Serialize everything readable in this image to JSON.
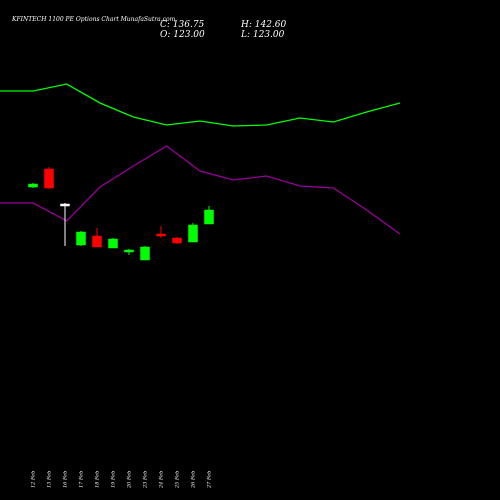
{
  "header": {
    "title": "KFINTECH 1100  PE Options  Chart MunafaSutra.com",
    "close_label": "C: 136.75",
    "open_label": "O: 123.00",
    "high_label": "H: 142.60",
    "low_label": "L: 123.00"
  },
  "chart_data": {
    "type": "candlestick",
    "title": "KFINTECH 1100  PE Options  Chart MunafaSutra.com",
    "background": "#000000",
    "colors": {
      "up": "#00ff00",
      "down": "#ff0000",
      "neutral": "#ffffff",
      "upper_line": "#00ff00",
      "lower_line": "#990099",
      "text": "#ffffff"
    },
    "categories": [
      "12 Feb",
      "13 Feb",
      "16 Feb",
      "17 Feb",
      "18 Feb",
      "19 Feb",
      "20 Feb",
      "23 Feb",
      "24 Feb",
      "25 Feb",
      "26 Feb",
      "27 Feb"
    ],
    "candles": [
      {
        "date": "12 Feb",
        "open": 313,
        "close": 316,
        "high": 317,
        "low": 312,
        "dir": "up"
      },
      {
        "date": "13 Feb",
        "open": 331,
        "close": 312,
        "high": 333,
        "low": 311,
        "dir": "down"
      },
      {
        "date": "16 Feb",
        "open": 296,
        "close": 296,
        "high": 297,
        "low": 254,
        "dir": "neutral"
      },
      {
        "date": "17 Feb",
        "open": 255,
        "close": 268,
        "high": 269,
        "low": 254,
        "dir": "up"
      },
      {
        "date": "18 Feb",
        "open": 264,
        "close": 253,
        "high": 272,
        "low": 253,
        "dir": "down"
      },
      {
        "date": "19 Feb",
        "open": 252,
        "close": 261,
        "high": 262,
        "low": 252,
        "dir": "up"
      },
      {
        "date": "20 Feb",
        "open": 248,
        "close": 250,
        "high": 251,
        "low": 245,
        "dir": "up"
      },
      {
        "date": "23 Feb",
        "open": 240,
        "close": 253,
        "high": 254,
        "low": 240,
        "dir": "up"
      },
      {
        "date": "24 Feb",
        "open": 266,
        "close": 264,
        "high": 274,
        "low": 262,
        "dir": "down"
      },
      {
        "date": "25 Feb",
        "open": 262,
        "close": 257,
        "high": 263,
        "low": 256,
        "dir": "down"
      },
      {
        "date": "26 Feb",
        "open": 258,
        "close": 275,
        "high": 277,
        "low": 258,
        "dir": "up"
      },
      {
        "date": "27 Feb",
        "open": 276,
        "close": 290,
        "high": 294,
        "low": 276,
        "dir": "up"
      }
    ],
    "upper_line": [
      {
        "x": 0,
        "y": 409
      },
      {
        "x": 2,
        "y": 409
      },
      {
        "x": 4,
        "y": 416
      },
      {
        "x": 6,
        "y": 397
      },
      {
        "x": 8,
        "y": 383
      },
      {
        "x": 10,
        "y": 375
      },
      {
        "x": 12,
        "y": 379
      },
      {
        "x": 14,
        "y": 374
      },
      {
        "x": 16,
        "y": 375
      },
      {
        "x": 18,
        "y": 382
      },
      {
        "x": 20,
        "y": 378
      },
      {
        "x": 22,
        "y": 388
      },
      {
        "x": 24,
        "y": 397
      }
    ],
    "lower_line": [
      {
        "x": 0,
        "y": 297
      },
      {
        "x": 2,
        "y": 297
      },
      {
        "x": 4,
        "y": 279
      },
      {
        "x": 6,
        "y": 313
      },
      {
        "x": 8,
        "y": 334
      },
      {
        "x": 10,
        "y": 354
      },
      {
        "x": 12,
        "y": 329
      },
      {
        "x": 14,
        "y": 320
      },
      {
        "x": 16,
        "y": 324
      },
      {
        "x": 18,
        "y": 314
      },
      {
        "x": 20,
        "y": 312
      },
      {
        "x": 22,
        "y": 290
      },
      {
        "x": 24,
        "y": 266
      }
    ],
    "xlim": [
      0,
      24
    ],
    "ylim": [
      0,
      500
    ],
    "grid": false,
    "legend": "none"
  }
}
